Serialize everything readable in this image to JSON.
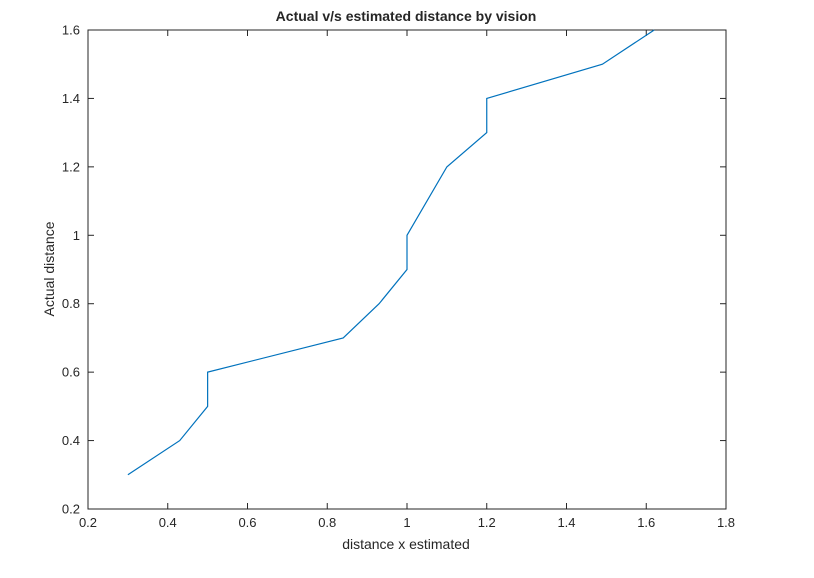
{
  "chart_data": {
    "type": "line",
    "title": "Actual v/s estimated distance by vision",
    "xlabel": "distance x estimated",
    "ylabel": "Actual distance",
    "xlim": [
      0.2,
      1.8
    ],
    "ylim": [
      0.2,
      1.6
    ],
    "xticks": [
      "0.2",
      "0.4",
      "0.6",
      "0.8",
      "1",
      "1.2",
      "1.4",
      "1.6",
      "1.8"
    ],
    "yticks": [
      "0.2",
      "0.4",
      "0.6",
      "0.8",
      "1",
      "1.2",
      "1.4",
      "1.6"
    ],
    "grid": false,
    "series": [
      {
        "color": "#0072bd",
        "x": [
          0.3,
          0.43,
          0.5,
          0.5,
          0.84,
          0.93,
          1.0,
          1.0,
          1.1,
          1.2,
          1.2,
          1.49,
          1.62
        ],
        "y": [
          0.3,
          0.4,
          0.5,
          0.6,
          0.7,
          0.8,
          0.9,
          1.0,
          1.2,
          1.3,
          1.4,
          1.5,
          1.6
        ]
      }
    ]
  }
}
